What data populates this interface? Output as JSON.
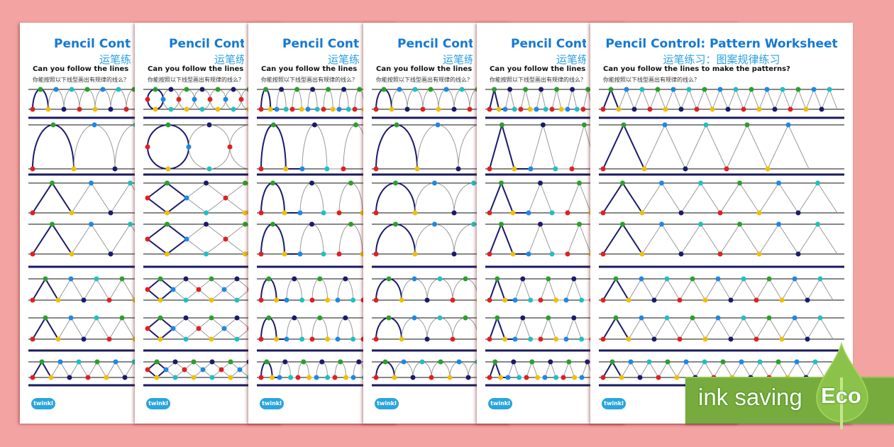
{
  "worksheet": {
    "title": "Pencil Control: Pattern Worksheet",
    "subtitle_cn": "运笔练习：图案规律练习",
    "question": "Can you follow the lines to make the patterns?",
    "question_cn": "你能按照以下线型画出有规律的线么？",
    "logo": "twinkl"
  },
  "pages": [
    {
      "pattern": "arch-and-zigzag"
    },
    {
      "pattern": "circles-and-diamonds"
    },
    {
      "pattern": "flat-arches"
    },
    {
      "pattern": "arches"
    },
    {
      "pattern": "flat-triangles"
    },
    {
      "pattern": "zigzag"
    }
  ],
  "badge": {
    "text": "ink saving",
    "eco": "Eco",
    "icon": "leaf-drop-icon"
  },
  "colors": {
    "background": "#f4a3a3",
    "title": "#1479d4",
    "badge_green": "#77ab3e",
    "dots": [
      "#e02020",
      "#2aa02a",
      "#f0c000",
      "#1e88e5",
      "#1a1a6e",
      "#20c0c0"
    ]
  }
}
